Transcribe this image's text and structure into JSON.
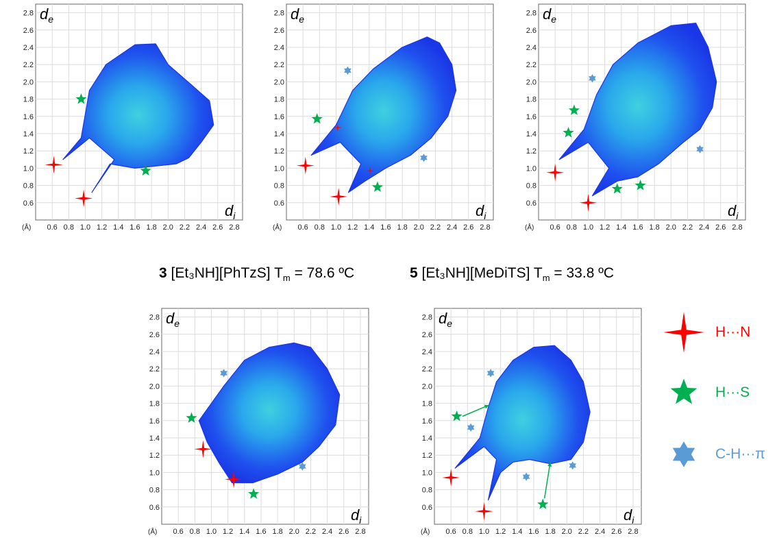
{
  "chart_data": [
    {
      "type": "scatter",
      "panel": "top-left",
      "xlabel": "d_i",
      "ylabel": "d_e",
      "unit_label": "(Å)",
      "xticks": [
        "0.6",
        "0.8",
        "1.0",
        "1.2",
        "1.4",
        "1.6",
        "1.8",
        "2.0",
        "2.2",
        "2.4",
        "2.6",
        "2.8"
      ],
      "yticks": [
        "0.6",
        "0.8",
        "1.0",
        "1.2",
        "1.4",
        "1.6",
        "1.8",
        "2.0",
        "2.2",
        "2.4",
        "2.6",
        "2.8"
      ],
      "xlim": [
        0.4,
        2.9
      ],
      "ylim": [
        0.4,
        2.9
      ],
      "grid": true,
      "fingerprint_outline": [
        [
          0.73,
          1.1
        ],
        [
          0.95,
          1.35
        ],
        [
          1.05,
          1.9
        ],
        [
          1.25,
          2.2
        ],
        [
          1.6,
          2.43
        ],
        [
          1.85,
          2.44
        ],
        [
          2.0,
          2.2
        ],
        [
          2.3,
          1.95
        ],
        [
          2.5,
          1.78
        ],
        [
          2.55,
          1.5
        ],
        [
          2.4,
          1.3
        ],
        [
          2.25,
          1.12
        ],
        [
          2.1,
          1.05
        ],
        [
          1.6,
          1.0
        ],
        [
          1.3,
          1.05
        ],
        [
          1.08,
          0.72
        ],
        [
          1.35,
          1.1
        ],
        [
          1.05,
          1.35
        ]
      ],
      "markers": [
        {
          "kind": "H···N",
          "x": 0.62,
          "y": 1.04
        },
        {
          "kind": "H···N",
          "x": 0.98,
          "y": 0.65
        },
        {
          "kind": "H···S",
          "x": 0.95,
          "y": 1.8
        },
        {
          "kind": "H···S",
          "x": 1.73,
          "y": 0.97
        }
      ]
    },
    {
      "type": "scatter",
      "panel": "top-middle",
      "xlabel": "d_i",
      "ylabel": "d_e",
      "unit_label": "(Å)",
      "xticks": [
        "0.6",
        "0.8",
        "1.0",
        "1.2",
        "1.4",
        "1.6",
        "1.8",
        "2.0",
        "2.2",
        "2.4",
        "2.6",
        "2.8"
      ],
      "yticks": [
        "0.6",
        "0.8",
        "1.0",
        "1.2",
        "1.4",
        "1.6",
        "1.8",
        "2.0",
        "2.2",
        "2.4",
        "2.6",
        "2.8"
      ],
      "xlim": [
        0.4,
        2.9
      ],
      "ylim": [
        0.4,
        2.9
      ],
      "grid": true,
      "fingerprint_outline": [
        [
          0.7,
          1.15
        ],
        [
          1.0,
          1.5
        ],
        [
          1.2,
          1.9
        ],
        [
          1.45,
          2.15
        ],
        [
          1.8,
          2.4
        ],
        [
          2.1,
          2.52
        ],
        [
          2.25,
          2.45
        ],
        [
          2.4,
          2.2
        ],
        [
          2.45,
          1.9
        ],
        [
          2.35,
          1.6
        ],
        [
          2.15,
          1.35
        ],
        [
          1.9,
          1.15
        ],
        [
          1.6,
          1.0
        ],
        [
          1.35,
          0.85
        ],
        [
          1.15,
          0.72
        ],
        [
          1.3,
          1.05
        ],
        [
          1.05,
          1.3
        ]
      ],
      "markers": [
        {
          "kind": "H···N",
          "x": 0.63,
          "y": 1.03
        },
        {
          "kind": "H···N",
          "x": 1.03,
          "y": 0.67
        },
        {
          "kind": "H···N",
          "x": 1.02,
          "y": 1.47,
          "small": true
        },
        {
          "kind": "H···N",
          "x": 1.41,
          "y": 0.97,
          "small": true
        },
        {
          "kind": "H···S",
          "x": 0.77,
          "y": 1.57
        },
        {
          "kind": "H···S",
          "x": 1.5,
          "y": 0.78
        },
        {
          "kind": "C-H···π",
          "x": 1.14,
          "y": 2.13
        },
        {
          "kind": "C-H···π",
          "x": 2.06,
          "y": 1.12
        }
      ]
    },
    {
      "type": "scatter",
      "panel": "top-right",
      "xlabel": "d_i",
      "ylabel": "d_e",
      "unit_label": "(Å)",
      "xticks": [
        "0.6",
        "0.8",
        "1.0",
        "1.2",
        "1.4",
        "1.6",
        "1.8",
        "2.0",
        "2.2",
        "2.4",
        "2.6",
        "2.8"
      ],
      "yticks": [
        "0.6",
        "0.8",
        "1.0",
        "1.2",
        "1.4",
        "1.6",
        "1.8",
        "2.0",
        "2.2",
        "2.4",
        "2.6",
        "2.8"
      ],
      "xlim": [
        0.4,
        2.9
      ],
      "ylim": [
        0.4,
        2.9
      ],
      "grid": true,
      "fingerprint_outline": [
        [
          0.65,
          1.1
        ],
        [
          0.95,
          1.45
        ],
        [
          1.1,
          1.85
        ],
        [
          1.3,
          2.2
        ],
        [
          1.6,
          2.45
        ],
        [
          2.0,
          2.65
        ],
        [
          2.3,
          2.68
        ],
        [
          2.45,
          2.4
        ],
        [
          2.55,
          2.0
        ],
        [
          2.5,
          1.7
        ],
        [
          2.35,
          1.45
        ],
        [
          2.15,
          1.3
        ],
        [
          1.85,
          1.05
        ],
        [
          1.6,
          0.9
        ],
        [
          1.35,
          0.85
        ],
        [
          1.05,
          0.68
        ],
        [
          1.25,
          1.0
        ],
        [
          1.0,
          1.3
        ]
      ],
      "markers": [
        {
          "kind": "H···N",
          "x": 0.6,
          "y": 0.95
        },
        {
          "kind": "H···N",
          "x": 1.0,
          "y": 0.6
        },
        {
          "kind": "H···S",
          "x": 0.76,
          "y": 1.41
        },
        {
          "kind": "H···S",
          "x": 0.83,
          "y": 1.67
        },
        {
          "kind": "H···S",
          "x": 1.35,
          "y": 0.76
        },
        {
          "kind": "H···S",
          "x": 1.63,
          "y": 0.8
        },
        {
          "kind": "C-H···π",
          "x": 1.05,
          "y": 2.04
        },
        {
          "kind": "C-H···π",
          "x": 2.35,
          "y": 1.22
        }
      ]
    },
    {
      "type": "scatter",
      "panel": "bottom-left",
      "xlabel": "d_i",
      "ylabel": "d_e",
      "unit_label": "(Å)",
      "xticks": [
        "0.6",
        "0.8",
        "1.0",
        "1.2",
        "1.4",
        "1.6",
        "1.8",
        "2.0",
        "2.2",
        "2.4",
        "2.6",
        "2.8"
      ],
      "yticks": [
        "0.6",
        "0.8",
        "1.0",
        "1.2",
        "1.4",
        "1.6",
        "1.8",
        "2.0",
        "2.2",
        "2.4",
        "2.6",
        "2.8"
      ],
      "xlim": [
        0.4,
        2.9
      ],
      "ylim": [
        0.4,
        2.9
      ],
      "grid": true,
      "fingerprint_outline": [
        [
          0.85,
          1.6
        ],
        [
          1.0,
          1.8
        ],
        [
          1.15,
          2.0
        ],
        [
          1.4,
          2.3
        ],
        [
          1.7,
          2.45
        ],
        [
          2.0,
          2.5
        ],
        [
          2.2,
          2.45
        ],
        [
          2.4,
          2.2
        ],
        [
          2.55,
          1.9
        ],
        [
          2.5,
          1.55
        ],
        [
          2.3,
          1.3
        ],
        [
          2.1,
          1.12
        ],
        [
          1.8,
          0.98
        ],
        [
          1.5,
          0.88
        ],
        [
          1.25,
          0.88
        ],
        [
          1.1,
          1.1
        ],
        [
          0.95,
          1.35
        ]
      ],
      "markers": [
        {
          "kind": "H···N",
          "x": 0.9,
          "y": 1.27
        },
        {
          "kind": "H···N",
          "x": 1.27,
          "y": 0.92
        },
        {
          "kind": "H···S",
          "x": 0.76,
          "y": 1.63
        },
        {
          "kind": "H···S",
          "x": 1.51,
          "y": 0.75
        },
        {
          "kind": "C-H···π",
          "x": 1.15,
          "y": 2.15
        },
        {
          "kind": "C-H···π",
          "x": 2.1,
          "y": 1.07
        }
      ]
    },
    {
      "type": "scatter",
      "panel": "bottom-middle",
      "xlabel": "d_i",
      "ylabel": "d_e",
      "unit_label": "(Å)",
      "xticks": [
        "0.6",
        "0.8",
        "1.0",
        "1.2",
        "1.4",
        "1.6",
        "1.8",
        "2.0",
        "2.2",
        "2.4",
        "2.6",
        "2.8"
      ],
      "yticks": [
        "0.6",
        "0.8",
        "1.0",
        "1.2",
        "1.4",
        "1.6",
        "1.8",
        "2.0",
        "2.2",
        "2.4",
        "2.6",
        "2.8"
      ],
      "xlim": [
        0.4,
        2.9
      ],
      "ylim": [
        0.4,
        2.9
      ],
      "grid": true,
      "fingerprint_outline": [
        [
          0.65,
          1.05
        ],
        [
          0.95,
          1.4
        ],
        [
          1.05,
          1.75
        ],
        [
          1.15,
          2.05
        ],
        [
          1.35,
          2.3
        ],
        [
          1.6,
          2.45
        ],
        [
          1.85,
          2.47
        ],
        [
          2.05,
          2.3
        ],
        [
          2.2,
          2.05
        ],
        [
          2.28,
          1.7
        ],
        [
          2.2,
          1.35
        ],
        [
          2.05,
          1.15
        ],
        [
          1.8,
          1.1
        ],
        [
          1.55,
          1.15
        ],
        [
          1.35,
          1.12
        ],
        [
          1.2,
          1.0
        ],
        [
          1.05,
          0.68
        ],
        [
          1.15,
          1.15
        ],
        [
          1.0,
          1.3
        ]
      ],
      "markers": [
        {
          "kind": "H···N",
          "x": 0.6,
          "y": 0.94
        },
        {
          "kind": "H···N",
          "x": 1.0,
          "y": 0.55
        },
        {
          "kind": "H···S",
          "x": 0.67,
          "y": 1.65
        },
        {
          "kind": "H···S",
          "x": 1.71,
          "y": 0.63
        },
        {
          "kind": "C-H···π",
          "x": 1.08,
          "y": 2.15
        },
        {
          "kind": "C-H···π",
          "x": 0.84,
          "y": 1.52
        },
        {
          "kind": "C-H···π",
          "x": 1.51,
          "y": 0.95
        },
        {
          "kind": "C-H···π",
          "x": 2.07,
          "y": 1.08
        }
      ],
      "arrows": [
        {
          "from": [
            0.74,
            1.65
          ],
          "to": [
            1.06,
            1.78
          ]
        },
        {
          "from": [
            1.73,
            0.7
          ],
          "to": [
            1.8,
            1.12
          ]
        }
      ]
    }
  ],
  "captions": {
    "left": {
      "number": "3",
      "text": "[Et₃NH][PhTzS] T",
      "sub": "m",
      "value": " = 78.6 ºC"
    },
    "right": {
      "number": "5",
      "text": "[Et₃NH][MeDiTS] T",
      "sub": "m",
      "value": " = 33.8 ºC"
    }
  },
  "legend": [
    {
      "kind": "H···N",
      "label": "H···N",
      "shape": "four-point-star",
      "color": "#ff0000"
    },
    {
      "kind": "H···S",
      "label": "H···S",
      "shape": "five-point-star",
      "color": "#00b050"
    },
    {
      "kind": "C-H···π",
      "label": "C-H···π",
      "shape": "six-point-star",
      "color": "#5b9bd5"
    }
  ],
  "colors": {
    "fingerprint": "#1f3fe8",
    "fingerprint_light": "#3fc8e8",
    "grid": "#dddddd"
  }
}
